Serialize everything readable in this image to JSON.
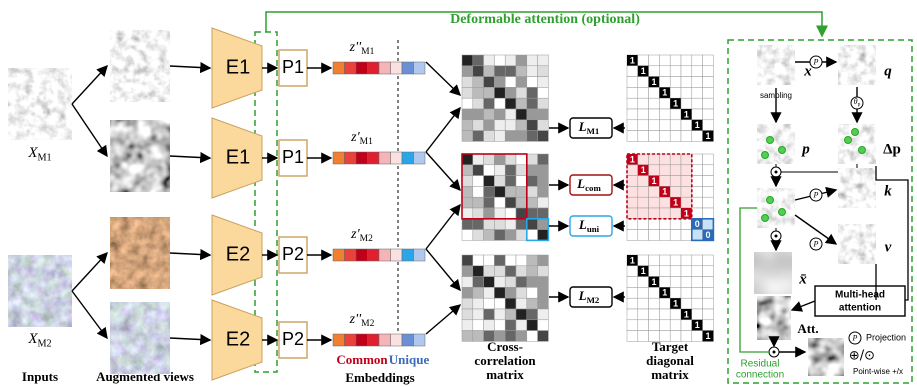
{
  "title": "Deformable attention (optional)",
  "inputs": {
    "label": "Inputs",
    "items": [
      {
        "base": "X",
        "sub": "M1"
      },
      {
        "base": "X",
        "sub": "M2"
      }
    ]
  },
  "augmented_views_label": "Augmented views",
  "encoders": [
    "E1",
    "E1",
    "E2",
    "E2"
  ],
  "projectors": [
    "P1",
    "P1",
    "P2",
    "P2"
  ],
  "embeddings": {
    "items": [
      {
        "base": "z''",
        "sub": "M1"
      },
      {
        "base": "z'",
        "sub": "M1"
      },
      {
        "base": "z'",
        "sub": "M2"
      },
      {
        "base": "z''",
        "sub": "M2"
      }
    ],
    "common": "Common",
    "unique": "Unique",
    "label": "Embeddings"
  },
  "cross_correlation_label": [
    "Cross-",
    "correlation",
    "matrix"
  ],
  "losses": [
    {
      "base": "L",
      "sub": "M1"
    },
    {
      "base": "L",
      "sub": "com"
    },
    {
      "base": "L",
      "sub": "uni"
    },
    {
      "base": "L",
      "sub": "M2"
    }
  ],
  "target_matrix": {
    "label": [
      "Target",
      "diagonal",
      "matrix"
    ],
    "matrices": [
      {
        "diagonal": [
          "1",
          "1",
          "1",
          "1",
          "1",
          "1",
          "1",
          "1"
        ]
      },
      {
        "diagonal": [
          "1",
          "1",
          "1",
          "1",
          "1",
          "1",
          "0",
          "0"
        ]
      },
      {
        "diagonal": [
          "1",
          "1",
          "1",
          "1",
          "1",
          "1",
          "1",
          "1"
        ]
      }
    ]
  },
  "attention": {
    "x": "x",
    "q": "q",
    "p": "p",
    "delta_p": "Δp",
    "k": "k",
    "v": "v",
    "x_bar": "x̄",
    "sampling": "sampling",
    "theta": {
      "base": "θ",
      "sub": "p"
    },
    "projection_symbol": "P",
    "multi_head": [
      "Multi-head",
      "attention"
    ],
    "att": "Att.",
    "residual": [
      "Residual",
      "connection"
    ],
    "legend": {
      "projection": "Projection",
      "pointwise_symbol": "⊕/⊙",
      "pointwise": "Point-wise +/x"
    }
  }
}
